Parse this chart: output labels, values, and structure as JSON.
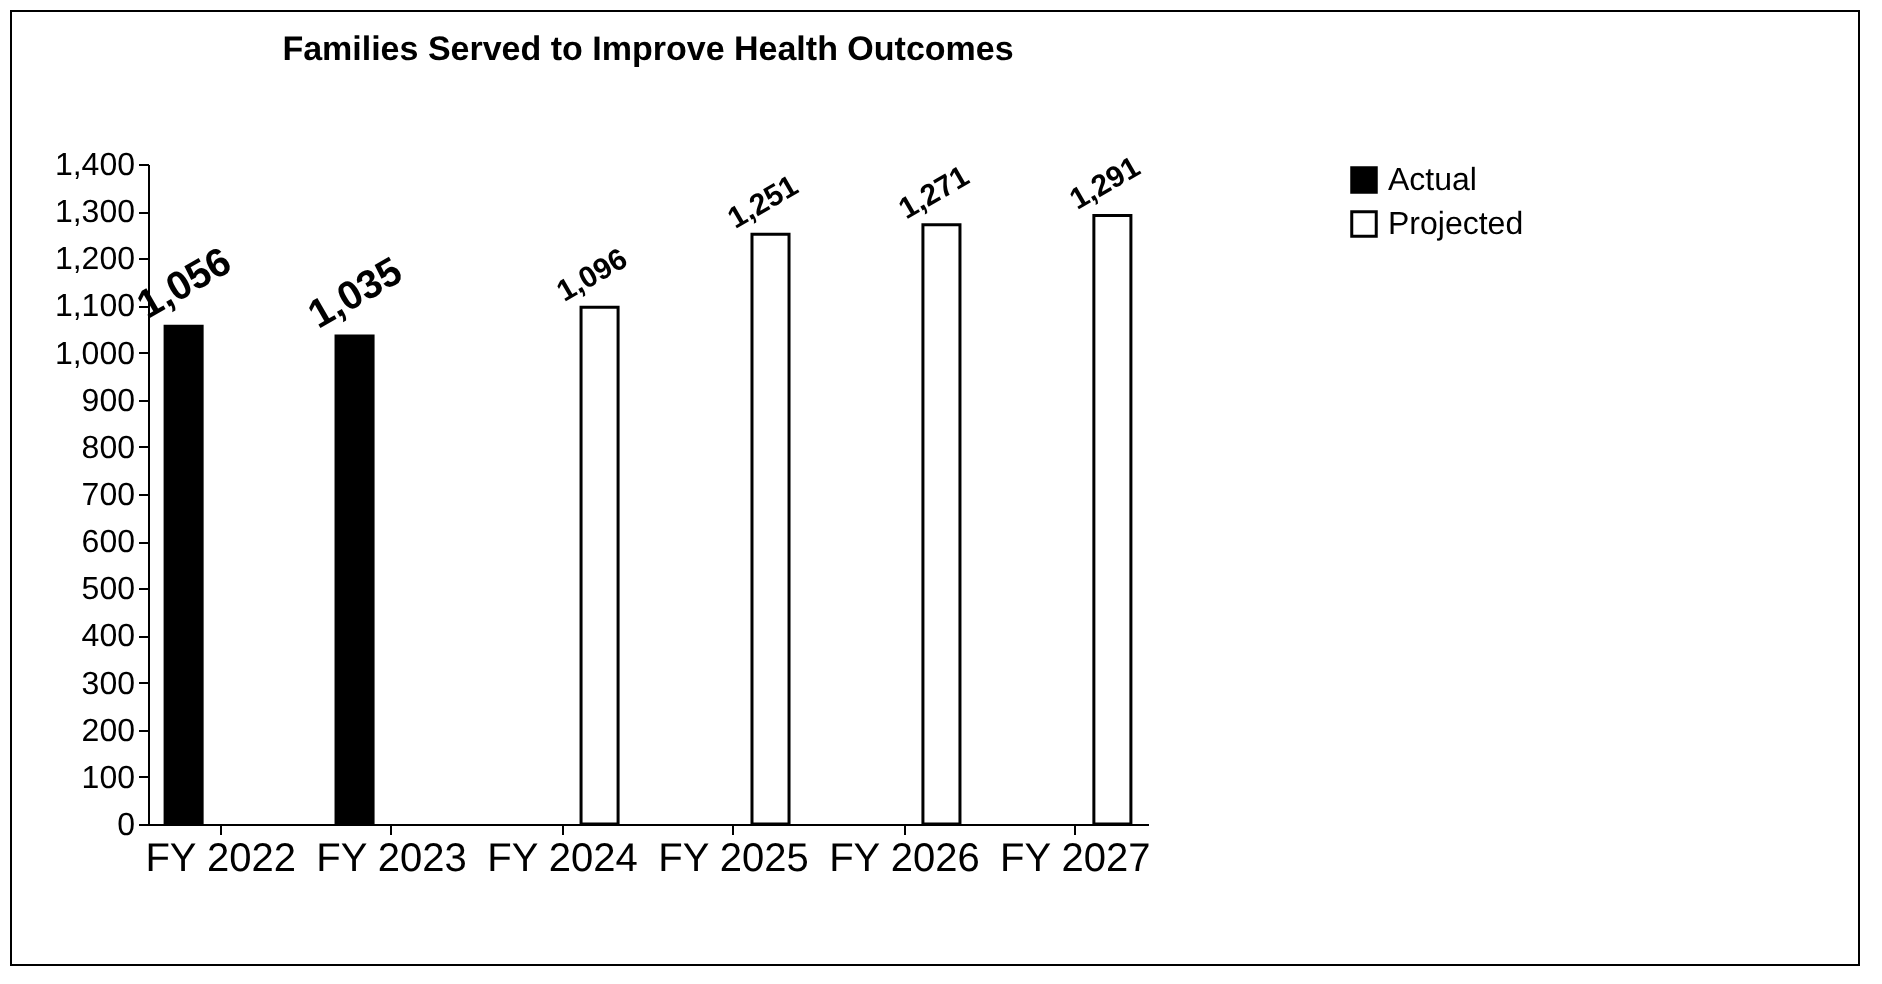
{
  "chart_data": {
    "type": "bar",
    "title": "Families Served to Improve Health Outcomes",
    "categories": [
      "FY 2022",
      "FY 2023",
      "FY 2024",
      "FY 2025",
      "FY 2026",
      "FY 2027"
    ],
    "series": [
      {
        "name": "Actual",
        "color": "#000000",
        "values": [
          1056,
          1035,
          null,
          null,
          null,
          null
        ],
        "value_labels": [
          "1,056",
          "1,035",
          null,
          null,
          null,
          null
        ]
      },
      {
        "name": "Projected",
        "color": "#ffffff",
        "values": [
          null,
          null,
          1096,
          1251,
          1271,
          1291
        ],
        "value_labels": [
          null,
          null,
          "1,096",
          "1,251",
          "1,271",
          "1,291"
        ]
      }
    ],
    "ylim": [
      0,
      1400
    ],
    "yticks": [
      0,
      100,
      200,
      300,
      400,
      500,
      600,
      700,
      800,
      900,
      {
        "value": 1000,
        "label": "1,000"
      },
      {
        "value": 1100,
        "label": "1,100"
      },
      {
        "value": 1200,
        "label": "1,200"
      },
      {
        "value": 1300,
        "label": "1,300"
      },
      {
        "value": 1400,
        "label": "1,400"
      }
    ],
    "grid": false,
    "legend": "right"
  }
}
